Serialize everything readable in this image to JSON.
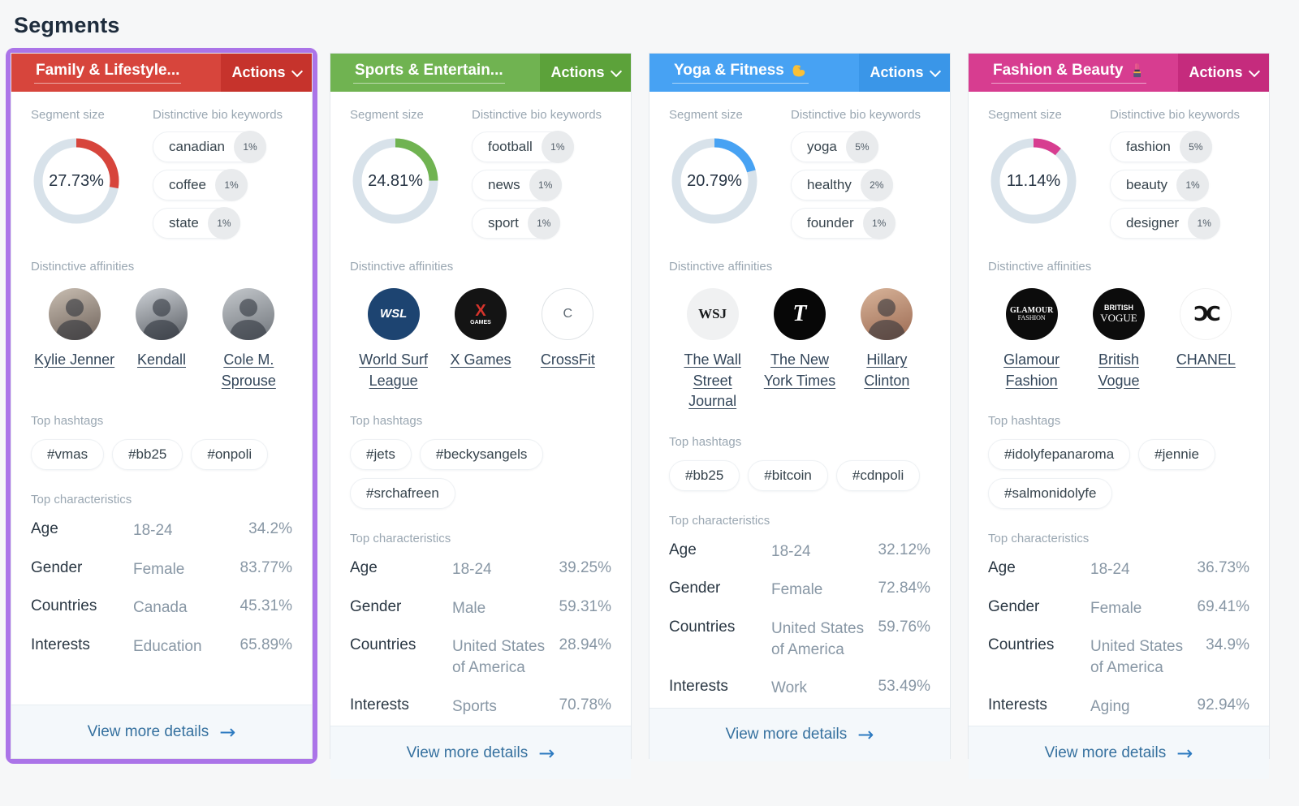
{
  "page": {
    "title": "Segments"
  },
  "labels": {
    "actions": "Actions",
    "segment_size": "Segment size",
    "bio_keywords": "Distinctive bio keywords",
    "affinities": "Distinctive affinities",
    "hashtags": "Top hashtags",
    "characteristics": "Top characteristics",
    "view_more": "View more details"
  },
  "colors": {
    "page_bg": "#f6f7f8",
    "selected_border": "#ab74e8",
    "card_border": "#e4e8ec",
    "donut_track": "#d8e2ea",
    "footer_bg": "#f4f8fb",
    "footer_link": "#36719f",
    "footer_arrow": "#2c7ac0",
    "section_label": "#9aa7b2"
  },
  "segments": [
    {
      "name": "Family & Lifestyle...",
      "emoji": null,
      "selected": true,
      "colors": {
        "base": "#d7453c",
        "dark": "#c6332c"
      },
      "size_pct": 27.73,
      "size_label": "27.73%",
      "keywords": [
        {
          "text": "canadian",
          "pct": "1%"
        },
        {
          "text": "coffee",
          "pct": "1%"
        },
        {
          "text": "state",
          "pct": "1%"
        }
      ],
      "affinities": [
        {
          "name": "Kylie Jenner",
          "kind": "photo",
          "g1": "#c9beb2",
          "g2": "#6e625a"
        },
        {
          "name": "Kendall",
          "kind": "photo",
          "g1": "#cfd3d8",
          "g2": "#595d63"
        },
        {
          "name": "Cole M. Sprouse",
          "kind": "photo",
          "g1": "#c4c8cc",
          "g2": "#70757b"
        }
      ],
      "hashtags": [
        "#vmas",
        "#bb25",
        "#onpoli"
      ],
      "characteristics": [
        {
          "label": "Age",
          "value": "18-24",
          "pct": "34.2%"
        },
        {
          "label": "Gender",
          "value": "Female",
          "pct": "83.77%"
        },
        {
          "label": "Countries",
          "value": "Canada",
          "pct": "45.31%"
        },
        {
          "label": "Interests",
          "value": "Education",
          "pct": "65.89%"
        }
      ]
    },
    {
      "name": "Sports & Entertain...",
      "emoji": null,
      "selected": false,
      "colors": {
        "base": "#70b351",
        "dark": "#5ca23a"
      },
      "size_pct": 24.81,
      "size_label": "24.81%",
      "keywords": [
        {
          "text": "football",
          "pct": "1%"
        },
        {
          "text": "news",
          "pct": "1%"
        },
        {
          "text": "sport",
          "pct": "1%"
        }
      ],
      "affinities": [
        {
          "name": "World Surf League",
          "kind": "logo",
          "bg": "#1d4471",
          "lines": [
            {
              "t": "WSL",
              "c": "#ffffff",
              "s": 15,
              "b": true,
              "i": true
            }
          ]
        },
        {
          "name": "X Games",
          "kind": "logo",
          "bg": "#141414",
          "lines": [
            {
              "t": "X",
              "c": "#d6342c",
              "s": 20,
              "b": true
            },
            {
              "t": "GAMES",
              "c": "#ffffff",
              "s": 7,
              "b": true
            }
          ]
        },
        {
          "name": "CrossFit",
          "kind": "logo",
          "bg": "#ffffff",
          "border": "#dfe3e6",
          "lines": [
            {
              "t": "C",
              "c": "#5f6a74",
              "s": 16
            }
          ]
        }
      ],
      "hashtags": [
        "#jets",
        "#beckysangels",
        "#srchafreen"
      ],
      "characteristics": [
        {
          "label": "Age",
          "value": "18-24",
          "pct": "39.25%"
        },
        {
          "label": "Gender",
          "value": "Male",
          "pct": "59.31%"
        },
        {
          "label": "Countries",
          "value": "United States of America",
          "pct": "28.94%"
        },
        {
          "label": "Interests",
          "value": "Sports",
          "pct": "70.78%"
        }
      ]
    },
    {
      "name": "Yoga & Fitness",
      "emoji": "flexed-biceps",
      "selected": false,
      "colors": {
        "base": "#47a2f3",
        "dark": "#3a96e8"
      },
      "size_pct": 20.79,
      "size_label": "20.79%",
      "keywords": [
        {
          "text": "yoga",
          "pct": "5%"
        },
        {
          "text": "healthy",
          "pct": "2%"
        },
        {
          "text": "founder",
          "pct": "1%"
        }
      ],
      "affinities": [
        {
          "name": "The Wall Street Journal",
          "kind": "logo",
          "bg": "#f0f1f2",
          "lines": [
            {
              "t": "WSJ",
              "c": "#17191b",
              "s": 17,
              "f": "serif",
              "b": true
            }
          ]
        },
        {
          "name": "The New York Times",
          "kind": "logo",
          "bg": "#070707",
          "lines": [
            {
              "t": "T",
              "c": "#ffffff",
              "s": 28,
              "f": "serif",
              "b": true,
              "i": true
            }
          ]
        },
        {
          "name": "Hillary Clinton",
          "kind": "photo",
          "g1": "#d8b49a",
          "g2": "#9c6a52"
        }
      ],
      "hashtags": [
        "#bb25",
        "#bitcoin",
        "#cdnpoli"
      ],
      "characteristics": [
        {
          "label": "Age",
          "value": "18-24",
          "pct": "32.12%"
        },
        {
          "label": "Gender",
          "value": "Female",
          "pct": "72.84%"
        },
        {
          "label": "Countries",
          "value": "United States of America",
          "pct": "59.76%"
        },
        {
          "label": "Interests",
          "value": "Work",
          "pct": "53.49%"
        }
      ]
    },
    {
      "name": "Fashion & Beauty",
      "emoji": "lipstick",
      "selected": false,
      "colors": {
        "base": "#d73d90",
        "dark": "#c52b7d"
      },
      "size_pct": 11.14,
      "size_label": "11.14%",
      "keywords": [
        {
          "text": "fashion",
          "pct": "5%"
        },
        {
          "text": "beauty",
          "pct": "1%"
        },
        {
          "text": "designer",
          "pct": "1%"
        }
      ],
      "affinities": [
        {
          "name": "Glamour Fashion",
          "kind": "logo",
          "bg": "#0c0c0c",
          "lines": [
            {
              "t": "GLAMOUR",
              "c": "#ffffff",
              "s": 10,
              "f": "serif",
              "b": true
            },
            {
              "t": "FASHION",
              "c": "#ffffff",
              "s": 8,
              "f": "serif"
            }
          ]
        },
        {
          "name": "British Vogue",
          "kind": "logo",
          "bg": "#0c0c0c",
          "lines": [
            {
              "t": "BRITISH",
              "c": "#ffffff",
              "s": 9,
              "b": true
            },
            {
              "t": "VOGUE",
              "c": "#ffffff",
              "s": 13,
              "f": "serif"
            }
          ]
        },
        {
          "name": "CHANEL",
          "kind": "logo",
          "bg": "#ffffff",
          "border": "#f1f1f1",
          "lines": [
            {
              "t": "ƆC",
              "c": "#141414",
              "s": 25,
              "b": true,
              "ls": "-0.14em",
              "f": "dejavu"
            }
          ]
        }
      ],
      "hashtags": [
        "#idolyfepanaroma",
        "#jennie",
        "#salmonidolyfe"
      ],
      "characteristics": [
        {
          "label": "Age",
          "value": "18-24",
          "pct": "36.73%"
        },
        {
          "label": "Gender",
          "value": "Female",
          "pct": "69.41%"
        },
        {
          "label": "Countries",
          "value": "United States of America",
          "pct": "34.9%"
        },
        {
          "label": "Interests",
          "value": "Aging",
          "pct": "92.94%"
        }
      ]
    }
  ]
}
